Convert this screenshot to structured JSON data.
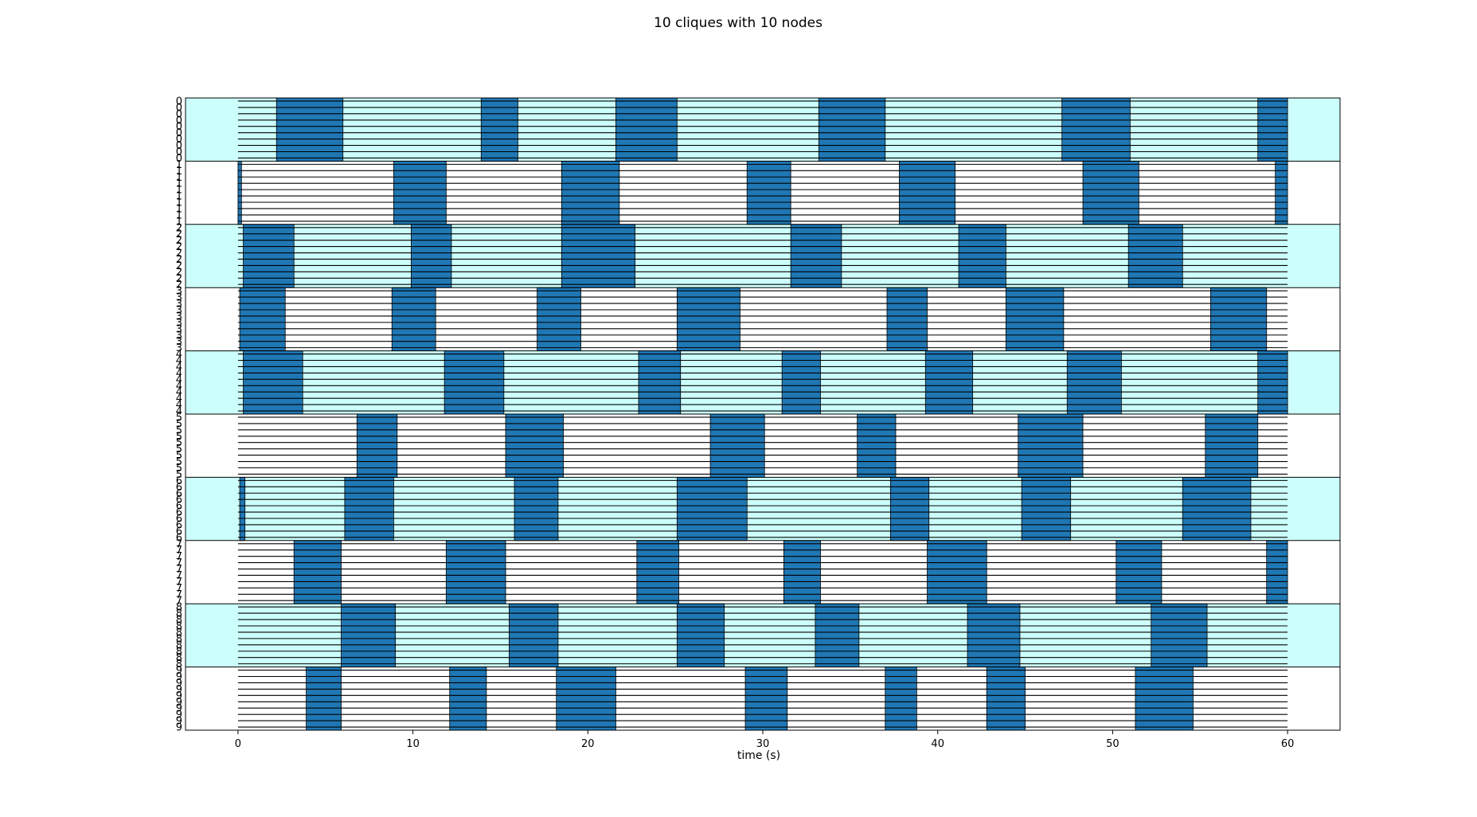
{
  "chart_data": {
    "type": "raster",
    "title": "10 cliques with 10 nodes",
    "xlabel": "time (s)",
    "ylabel": "",
    "xlim": [
      -3,
      63
    ],
    "xticks": [
      0,
      10,
      20,
      30,
      40,
      50,
      60
    ],
    "grid": false,
    "nodes_per_clique": 10,
    "colors": {
      "up_state": "#1f77b4",
      "band_alt": "#ccfffb",
      "band_plain": "#ffffff",
      "edge": "#000000"
    },
    "cliques": [
      {
        "label": "0",
        "shaded": true,
        "up_states": [
          [
            2.2,
            6.0
          ],
          [
            13.9,
            16.0
          ],
          [
            21.6,
            25.1
          ],
          [
            33.2,
            37.0
          ],
          [
            47.1,
            51.0
          ],
          [
            58.3,
            60.0
          ]
        ]
      },
      {
        "label": "1",
        "shaded": false,
        "up_states": [
          [
            0.0,
            0.2
          ],
          [
            8.9,
            11.9
          ],
          [
            18.5,
            21.8
          ],
          [
            29.1,
            31.6
          ],
          [
            37.8,
            41.0
          ],
          [
            48.3,
            51.5
          ],
          [
            59.3,
            60.0
          ]
        ]
      },
      {
        "label": "2",
        "shaded": true,
        "up_states": [
          [
            0.3,
            3.2
          ],
          [
            9.9,
            12.2
          ],
          [
            18.5,
            22.7
          ],
          [
            31.6,
            34.5
          ],
          [
            41.2,
            43.9
          ],
          [
            50.9,
            54.0
          ]
        ]
      },
      {
        "label": "3",
        "shaded": false,
        "up_states": [
          [
            0.1,
            2.7
          ],
          [
            8.8,
            11.3
          ],
          [
            17.1,
            19.6
          ],
          [
            25.1,
            28.7
          ],
          [
            37.1,
            39.4
          ],
          [
            43.9,
            47.2
          ],
          [
            55.6,
            58.8
          ]
        ]
      },
      {
        "label": "4",
        "shaded": true,
        "up_states": [
          [
            0.3,
            3.7
          ],
          [
            11.8,
            15.2
          ],
          [
            22.9,
            25.3
          ],
          [
            31.1,
            33.3
          ],
          [
            39.3,
            42.0
          ],
          [
            47.4,
            50.5
          ],
          [
            58.3,
            60.0
          ]
        ]
      },
      {
        "label": "5",
        "shaded": false,
        "up_states": [
          [
            6.8,
            9.1
          ],
          [
            15.3,
            18.6
          ],
          [
            27.0,
            30.1
          ],
          [
            35.4,
            37.6
          ],
          [
            44.6,
            48.3
          ],
          [
            55.3,
            58.3
          ]
        ]
      },
      {
        "label": "6",
        "shaded": true,
        "up_states": [
          [
            0.1,
            0.4
          ],
          [
            6.1,
            8.9
          ],
          [
            15.8,
            18.3
          ],
          [
            25.1,
            29.1
          ],
          [
            37.3,
            39.5
          ],
          [
            44.8,
            47.6
          ],
          [
            54.0,
            57.9
          ]
        ]
      },
      {
        "label": "7",
        "shaded": false,
        "up_states": [
          [
            3.2,
            5.9
          ],
          [
            11.9,
            15.3
          ],
          [
            22.8,
            25.2
          ],
          [
            31.2,
            33.3
          ],
          [
            39.4,
            42.8
          ],
          [
            50.2,
            52.8
          ],
          [
            58.8,
            60.0
          ]
        ]
      },
      {
        "label": "8",
        "shaded": true,
        "up_states": [
          [
            5.9,
            9.0
          ],
          [
            15.5,
            18.3
          ],
          [
            25.1,
            27.8
          ],
          [
            33.0,
            35.5
          ],
          [
            41.7,
            44.7
          ],
          [
            52.2,
            55.4
          ]
        ]
      },
      {
        "label": "9",
        "shaded": false,
        "up_states": [
          [
            3.9,
            5.9
          ],
          [
            12.1,
            14.2
          ],
          [
            18.2,
            21.6
          ],
          [
            29.0,
            31.4
          ],
          [
            37.0,
            38.8
          ],
          [
            42.8,
            45.0
          ],
          [
            51.3,
            54.6
          ]
        ]
      }
    ]
  }
}
